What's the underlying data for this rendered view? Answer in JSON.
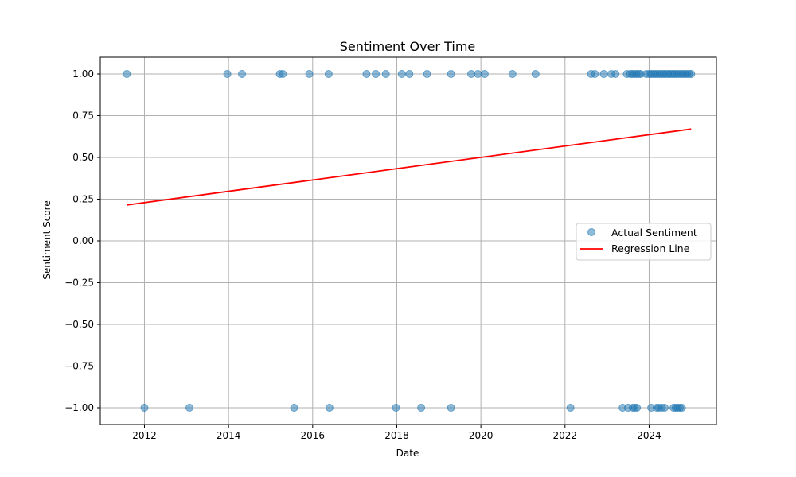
{
  "chart_data": {
    "type": "scatter",
    "title": "Sentiment Over Time",
    "xlabel": "Date",
    "ylabel": "Sentiment Score",
    "xlim": [
      2010.95,
      2025.6
    ],
    "ylim": [
      -1.1,
      1.1
    ],
    "x_ticks": [
      2012,
      2014,
      2016,
      2018,
      2020,
      2022,
      2024
    ],
    "x_tick_labels": [
      "2012",
      "2014",
      "2016",
      "2018",
      "2020",
      "2022",
      "2024"
    ],
    "y_ticks": [
      1.0,
      0.75,
      0.5,
      0.25,
      0.0,
      -0.25,
      -0.5,
      -0.75,
      -1.0
    ],
    "y_tick_labels": [
      "1.00",
      "0.75",
      "0.50",
      "0.25",
      "0.00",
      "−0.25",
      "−0.50",
      "−0.75",
      "−1.00"
    ],
    "grid": true,
    "legend": {
      "placement": "center-right",
      "entries": [
        "Actual Sentiment",
        "Regression Line"
      ]
    },
    "colors": {
      "points": "#1f77b4",
      "regression": "#ff0000",
      "grid": "#b0b0b0"
    },
    "series": [
      {
        "name": "Actual Sentiment",
        "kind": "scatter",
        "x": [
          2011.58,
          2013.97,
          2014.32,
          2015.22,
          2015.29,
          2015.92,
          2016.38,
          2017.28,
          2017.5,
          2017.74,
          2018.12,
          2018.3,
          2018.72,
          2019.29,
          2019.77,
          2019.93,
          2020.09,
          2020.75,
          2021.3,
          2022.62,
          2022.71,
          2022.92,
          2023.1,
          2023.2,
          2023.47,
          2023.55,
          2023.6,
          2023.65,
          2023.7,
          2023.75,
          2023.8,
          2023.93,
          2024.0,
          2024.05,
          2024.1,
          2024.15,
          2024.2,
          2024.25,
          2024.3,
          2024.35,
          2024.4,
          2024.45,
          2024.5,
          2024.55,
          2024.6,
          2024.65,
          2024.7,
          2024.75,
          2024.8,
          2024.85,
          2024.9,
          2024.95,
          2025.0,
          2012.0,
          2013.07,
          2015.56,
          2016.4,
          2017.98,
          2018.58,
          2019.29,
          2022.13,
          2023.37,
          2023.5,
          2023.61,
          2023.66,
          2023.71,
          2024.05,
          2024.18,
          2024.23,
          2024.3,
          2024.37,
          2024.58,
          2024.63,
          2024.68,
          2024.73,
          2024.78
        ],
        "y": [
          1,
          1,
          1,
          1,
          1,
          1,
          1,
          1,
          1,
          1,
          1,
          1,
          1,
          1,
          1,
          1,
          1,
          1,
          1,
          1,
          1,
          1,
          1,
          1,
          1,
          1,
          1,
          1,
          1,
          1,
          1,
          1,
          1,
          1,
          1,
          1,
          1,
          1,
          1,
          1,
          1,
          1,
          1,
          1,
          1,
          1,
          1,
          1,
          1,
          1,
          1,
          1,
          1,
          -1,
          -1,
          -1,
          -1,
          -1,
          -1,
          -1,
          -1,
          -1,
          -1,
          -1,
          -1,
          -1,
          -1,
          -1,
          -1,
          -1,
          -1,
          -1,
          -1,
          -1,
          -1,
          -1
        ]
      },
      {
        "name": "Regression Line",
        "kind": "line",
        "x": [
          2011.58,
          2025.0
        ],
        "y": [
          0.215,
          0.67
        ]
      }
    ]
  }
}
